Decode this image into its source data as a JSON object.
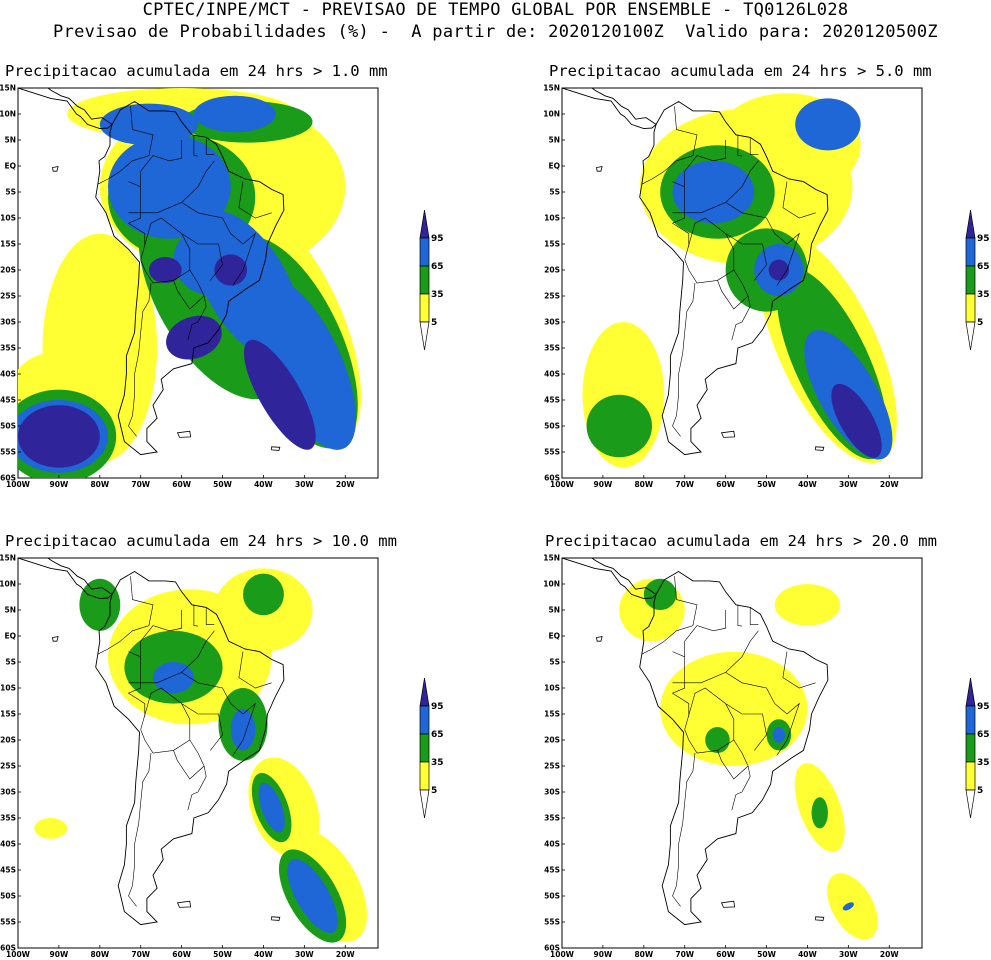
{
  "header": {
    "line1": "CPTEC/INPE/MCT - PREVISAO DE TEMPO GLOBAL POR ENSEMBLE - TQ0126L028",
    "line2": "Previsao de Probabilidades (%) -  A partir de: 2020120100Z  Valido para: 2020120500Z"
  },
  "colors": {
    "p5": "#ffff33",
    "p35": "#1a9b1a",
    "p65": "#1f66d6",
    "p95": "#30249b",
    "land_outline": "#000000"
  },
  "legend": {
    "labels": [
      "95",
      "65",
      "35",
      "5"
    ]
  },
  "axes": {
    "lat_labels": [
      "15N",
      "10N",
      "5N",
      "EQ",
      "5S",
      "10S",
      "15S",
      "20S",
      "25S",
      "30S",
      "35S",
      "40S",
      "45S",
      "50S",
      "55S",
      "60S"
    ],
    "lon_labels": [
      "100W",
      "90W",
      "80W",
      "70W",
      "60W",
      "50W",
      "40W",
      "30W",
      "20W"
    ]
  },
  "panels": [
    {
      "id": "p1",
      "title": "Precipitacao acumulada em 24 hrs > 1.0 mm",
      "threshold_mm": 1.0
    },
    {
      "id": "p2",
      "title": "Precipitacao acumulada em 24 hrs > 5.0 mm",
      "threshold_mm": 5.0
    },
    {
      "id": "p3",
      "title": "Precipitacao acumulada em 24 hrs > 10.0 mm",
      "threshold_mm": 10.0
    },
    {
      "id": "p4",
      "title": "Precipitacao acumulada em 24 hrs > 20.0 mm",
      "threshold_mm": 20.0
    }
  ]
}
